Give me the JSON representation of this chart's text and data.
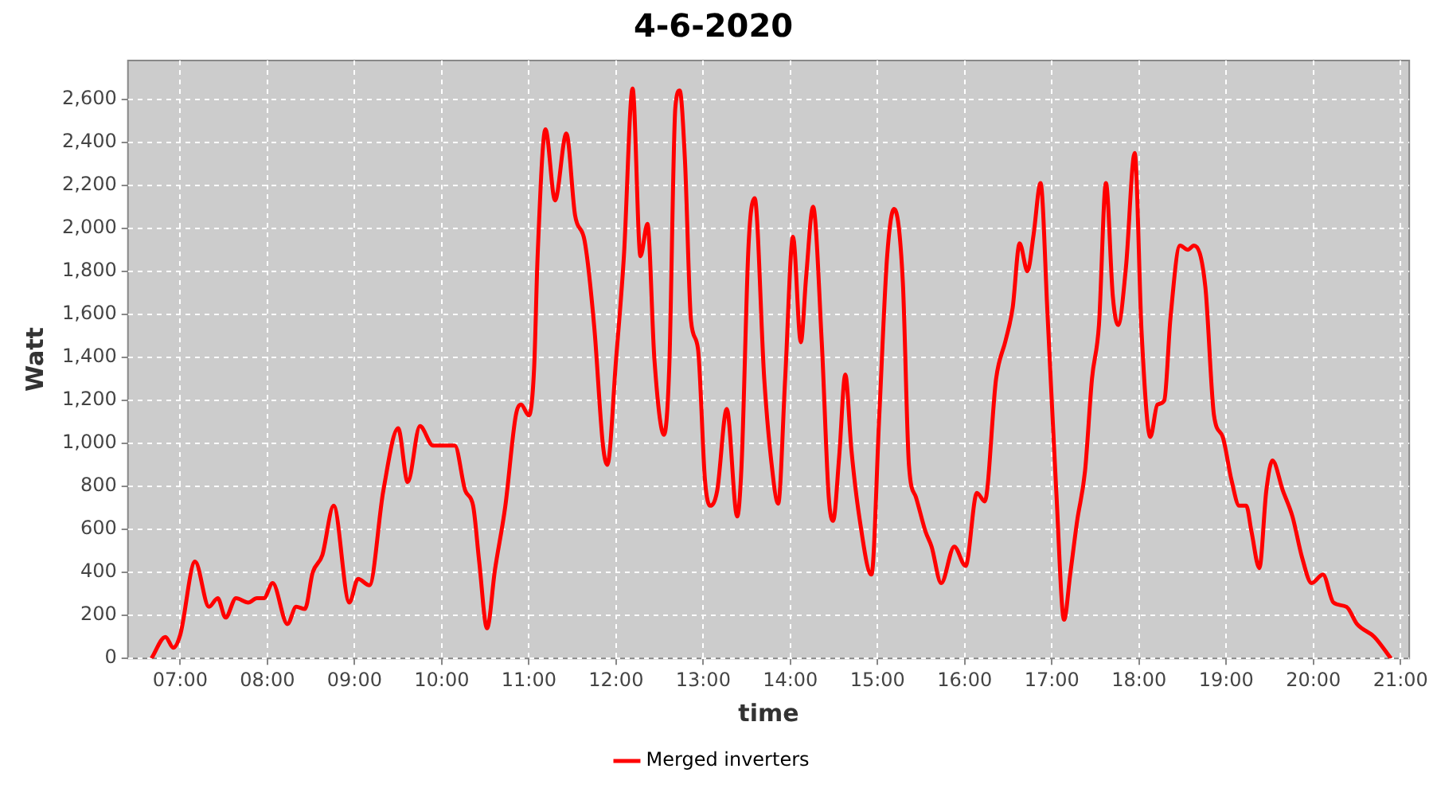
{
  "chart_data": {
    "type": "line",
    "title": "4-6-2020",
    "xlabel": "time",
    "ylabel": "Watt",
    "x": [
      6.67,
      6.83,
      6.92,
      7.0,
      7.17,
      7.33,
      7.43,
      7.52,
      7.64,
      7.78,
      7.88,
      7.96,
      8.06,
      8.23,
      8.33,
      8.43,
      8.52,
      8.63,
      8.76,
      8.94,
      9.04,
      9.17,
      9.33,
      9.5,
      9.61,
      9.75,
      9.9,
      10.15,
      10.27,
      10.36,
      10.43,
      10.52,
      10.61,
      10.73,
      10.85,
      10.91,
      11.0,
      11.06,
      11.1,
      11.19,
      11.3,
      11.43,
      11.53,
      11.64,
      11.75,
      11.85,
      11.9,
      12.0,
      12.09,
      12.19,
      12.28,
      12.36,
      12.44,
      12.55,
      12.61,
      12.68,
      12.73,
      12.79,
      12.86,
      12.94,
      13.02,
      13.08,
      13.16,
      13.27,
      13.39,
      13.44,
      13.52,
      13.59,
      13.7,
      13.78,
      13.86,
      13.94,
      14.03,
      14.12,
      14.18,
      14.26,
      14.36,
      14.44,
      14.49,
      14.56,
      14.63,
      14.7,
      14.79,
      14.93,
      15.02,
      15.11,
      15.19,
      15.29,
      15.36,
      15.44,
      15.55,
      15.62,
      15.73,
      15.88,
      16.01,
      16.14,
      16.23,
      16.36,
      16.47,
      16.55,
      16.63,
      16.72,
      16.79,
      16.87,
      16.95,
      17.05,
      17.14,
      17.21,
      17.29,
      17.38,
      17.46,
      17.54,
      17.62,
      17.7,
      17.76,
      17.85,
      17.95,
      18.03,
      18.13,
      18.21,
      18.29,
      18.36,
      18.47,
      18.56,
      18.63,
      18.76,
      18.86,
      18.96,
      19.06,
      19.15,
      19.23,
      19.29,
      19.38,
      19.46,
      19.53,
      19.65,
      19.76,
      19.87,
      19.98,
      20.11,
      20.23,
      20.38,
      20.5,
      20.7,
      20.89
    ],
    "series": [
      {
        "name": "Merged inverters",
        "color": "#ff0000",
        "values": [
          0,
          100,
          50,
          110,
          450,
          240,
          280,
          190,
          280,
          260,
          280,
          280,
          350,
          160,
          240,
          230,
          400,
          480,
          710,
          260,
          370,
          340,
          780,
          1070,
          820,
          1080,
          990,
          990,
          780,
          710,
          450,
          140,
          410,
          710,
          1130,
          1180,
          1130,
          1350,
          1870,
          2460,
          2130,
          2440,
          2060,
          1940,
          1540,
          990,
          900,
          1390,
          1870,
          2650,
          1870,
          2020,
          1390,
          1040,
          1350,
          2560,
          2640,
          2320,
          1570,
          1440,
          830,
          710,
          780,
          1160,
          660,
          900,
          1920,
          2140,
          1300,
          920,
          720,
          1300,
          1960,
          1470,
          1770,
          2100,
          1470,
          750,
          640,
          940,
          1320,
          970,
          660,
          390,
          1130,
          1870,
          2090,
          1750,
          900,
          750,
          590,
          520,
          350,
          520,
          430,
          770,
          730,
          1300,
          1480,
          1630,
          1930,
          1800,
          1970,
          2210,
          1600,
          780,
          180,
          390,
          640,
          870,
          1300,
          1550,
          2210,
          1680,
          1550,
          1820,
          2350,
          1510,
          1030,
          1180,
          1200,
          1580,
          1920,
          1900,
          1920,
          1730,
          1130,
          1030,
          830,
          710,
          710,
          590,
          420,
          780,
          920,
          780,
          660,
          470,
          350,
          390,
          260,
          240,
          160,
          100,
          0
        ]
      }
    ],
    "xlim": [
      6.4,
      21.1
    ],
    "xticks": [
      {
        "value": 7,
        "label": "07:00"
      },
      {
        "value": 8,
        "label": "08:00"
      },
      {
        "value": 9,
        "label": "09:00"
      },
      {
        "value": 10,
        "label": "10:00"
      },
      {
        "value": 11,
        "label": "11:00"
      },
      {
        "value": 12,
        "label": "12:00"
      },
      {
        "value": 13,
        "label": "13:00"
      },
      {
        "value": 14,
        "label": "14:00"
      },
      {
        "value": 15,
        "label": "15:00"
      },
      {
        "value": 16,
        "label": "16:00"
      },
      {
        "value": 17,
        "label": "17:00"
      },
      {
        "value": 18,
        "label": "18:00"
      },
      {
        "value": 19,
        "label": "19:00"
      },
      {
        "value": 20,
        "label": "20:00"
      },
      {
        "value": 21,
        "label": "21:00"
      }
    ],
    "ylim": [
      0,
      2780
    ],
    "yticks": [
      0,
      200,
      400,
      600,
      800,
      {
        "value": 1000,
        "label": "1,000"
      },
      {
        "value": 1200,
        "label": "1,200"
      },
      {
        "value": 1400,
        "label": "1,400"
      },
      {
        "value": 1600,
        "label": "1,600"
      },
      {
        "value": 1800,
        "label": "1,800"
      },
      {
        "value": 2000,
        "label": "2,000"
      },
      {
        "value": 2200,
        "label": "2,200"
      },
      {
        "value": 2400,
        "label": "2,400"
      },
      {
        "value": 2600,
        "label": "2,600"
      }
    ],
    "grid": true,
    "legend": "bottom"
  }
}
